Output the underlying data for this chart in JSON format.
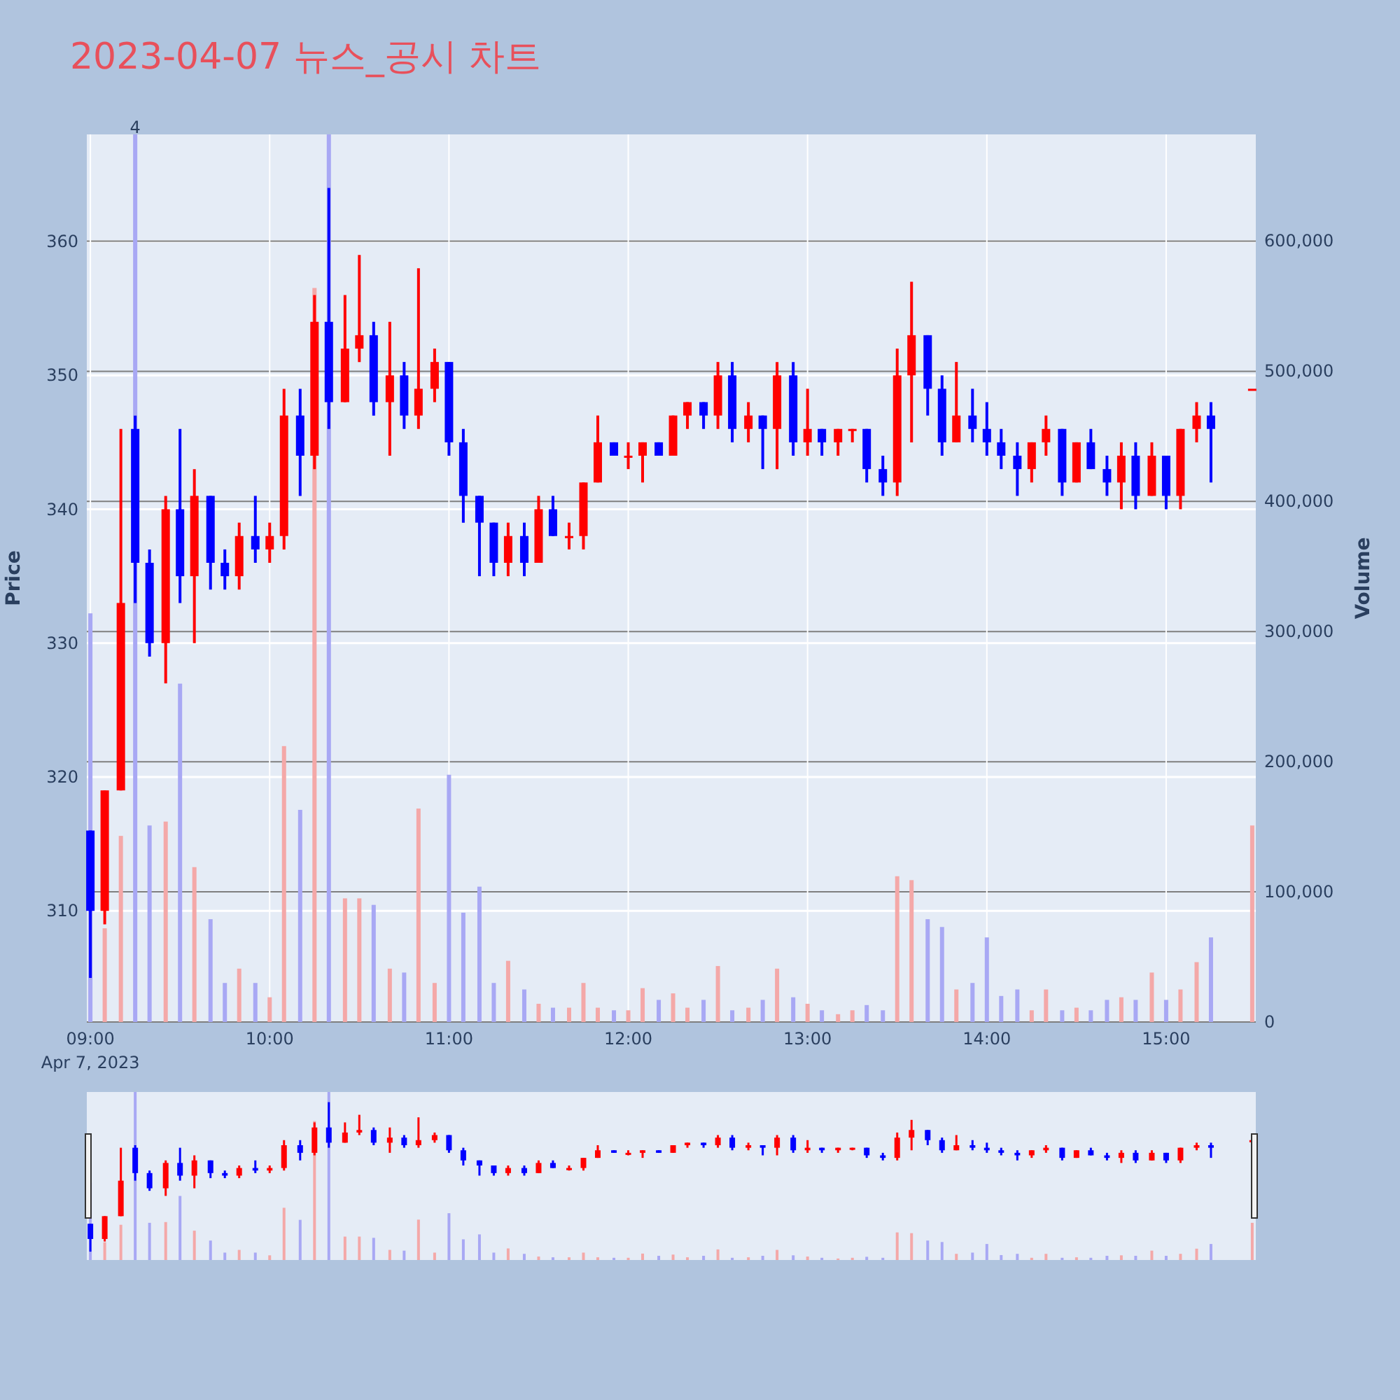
{
  "chart_data": {
    "type": "candlestick",
    "title": "2023-04-07 뉴스_공시 차트",
    "ylabel": "Price",
    "y2label": "Volume",
    "x": [
      9,
      9.08,
      9.17,
      9.25,
      9.33,
      9.42,
      9.5,
      9.58,
      9.67,
      9.75,
      9.83,
      9.92,
      10,
      10.08,
      10.17,
      10.25,
      10.33,
      10.42,
      10.5,
      10.58,
      10.67,
      10.75,
      10.83,
      10.92,
      11,
      11.08,
      11.17,
      11.25,
      11.33,
      11.42,
      11.5,
      11.58,
      11.67,
      11.75,
      11.83,
      11.92,
      12,
      12.08,
      12.17,
      12.25,
      12.33,
      12.42,
      12.5,
      12.58,
      12.67,
      12.75,
      12.83,
      12.92,
      13,
      13.08,
      13.17,
      13.25,
      13.33,
      13.42,
      13.5,
      13.58,
      13.67,
      13.75,
      13.83,
      13.92,
      14,
      14.08,
      14.17,
      14.25,
      14.33,
      14.42,
      14.5,
      14.58,
      14.67,
      14.75,
      14.83,
      14.92,
      15,
      15.08,
      15.17,
      15.25,
      15.48
    ],
    "xlim": [
      8.98,
      15.5
    ],
    "xticks": [
      {
        "value": 9,
        "label": "09:00"
      },
      {
        "value": 10,
        "label": "10:00"
      },
      {
        "value": 11,
        "label": "11:00"
      },
      {
        "value": 12,
        "label": "12:00"
      },
      {
        "value": 13,
        "label": "13:00"
      },
      {
        "value": 14,
        "label": "14:00"
      },
      {
        "value": 15,
        "label": "15:00"
      }
    ],
    "ylim": [
      301.7,
      368
    ],
    "yticks": [
      310,
      320,
      330,
      340,
      350,
      360
    ],
    "y2lim": [
      0,
      682000
    ],
    "y2ticks": [
      0,
      {
        "value": 100000,
        "label": "100,000"
      },
      {
        "value": 200000,
        "label": "200,000"
      },
      {
        "value": 300000,
        "label": "300,000"
      },
      {
        "value": 400000,
        "label": "400,000"
      },
      {
        "value": 500000,
        "label": "500,000"
      },
      {
        "value": 600000,
        "label": "600,000"
      }
    ],
    "grid": true,
    "annotations": [
      "Apr 7, 2023",
      "4"
    ],
    "series": [
      {
        "type": "candlestick",
        "ohlc": [
          [
            316,
            316,
            305,
            310
          ],
          [
            310,
            319,
            309,
            319
          ],
          [
            319,
            346,
            319,
            333
          ],
          [
            346,
            347,
            333,
            336
          ],
          [
            336,
            337,
            329,
            330
          ],
          [
            330,
            341,
            327,
            340
          ],
          [
            340,
            346,
            333,
            335
          ],
          [
            335,
            343,
            330,
            341
          ],
          [
            341,
            341,
            334,
            336
          ],
          [
            336,
            337,
            334,
            335
          ],
          [
            335,
            339,
            334,
            338
          ],
          [
            338,
            341,
            336,
            337
          ],
          [
            337,
            339,
            336,
            338
          ],
          [
            338,
            349,
            337,
            347
          ],
          [
            347,
            349,
            341,
            344
          ],
          [
            344,
            356,
            343,
            354
          ],
          [
            354,
            364,
            346,
            348
          ],
          [
            348,
            356,
            348,
            352
          ],
          [
            352,
            359,
            351,
            353
          ],
          [
            353,
            354,
            347,
            348
          ],
          [
            348,
            354,
            344,
            350
          ],
          [
            350,
            351,
            346,
            347
          ],
          [
            347,
            358,
            346,
            349
          ],
          [
            349,
            352,
            348,
            351
          ],
          [
            351,
            351,
            344,
            345
          ],
          [
            345,
            346,
            339,
            341
          ],
          [
            341,
            341,
            335,
            339
          ],
          [
            339,
            339,
            335,
            336
          ],
          [
            336,
            339,
            335,
            338
          ],
          [
            338,
            339,
            335,
            336
          ],
          [
            336,
            341,
            336,
            340
          ],
          [
            340,
            341,
            338,
            338
          ],
          [
            338,
            339,
            337,
            338
          ],
          [
            338,
            342,
            337,
            342
          ],
          [
            342,
            347,
            342,
            345
          ],
          [
            345,
            345,
            344,
            344
          ],
          [
            344,
            345,
            343,
            344
          ],
          [
            344,
            345,
            342,
            345
          ],
          [
            345,
            345,
            344,
            344
          ],
          [
            344,
            347,
            344,
            347
          ],
          [
            347,
            348,
            346,
            348
          ],
          [
            348,
            348,
            346,
            347
          ],
          [
            347,
            351,
            346,
            350
          ],
          [
            350,
            351,
            345,
            346
          ],
          [
            346,
            348,
            345,
            347
          ],
          [
            347,
            347,
            343,
            346
          ],
          [
            346,
            351,
            343,
            350
          ],
          [
            350,
            351,
            344,
            345
          ],
          [
            345,
            349,
            344,
            346
          ],
          [
            346,
            346,
            344,
            345
          ],
          [
            345,
            346,
            344,
            346
          ],
          [
            346,
            346,
            345,
            346
          ],
          [
            346,
            346,
            342,
            343
          ],
          [
            343,
            344,
            341,
            342
          ],
          [
            342,
            352,
            341,
            350
          ],
          [
            350,
            357,
            345,
            353
          ],
          [
            353,
            353,
            347,
            349
          ],
          [
            349,
            350,
            344,
            345
          ],
          [
            345,
            351,
            345,
            347
          ],
          [
            347,
            349,
            345,
            346
          ],
          [
            346,
            348,
            344,
            345
          ],
          [
            345,
            346,
            343,
            344
          ],
          [
            344,
            345,
            341,
            343
          ],
          [
            343,
            345,
            342,
            345
          ],
          [
            345,
            347,
            344,
            346
          ],
          [
            346,
            346,
            341,
            342
          ],
          [
            342,
            345,
            342,
            345
          ],
          [
            345,
            346,
            343,
            343
          ],
          [
            343,
            344,
            341,
            342
          ],
          [
            342,
            345,
            340,
            344
          ],
          [
            344,
            345,
            340,
            341
          ],
          [
            341,
            345,
            341,
            344
          ],
          [
            344,
            344,
            340,
            341
          ],
          [
            341,
            346,
            340,
            346
          ],
          [
            346,
            348,
            345,
            347
          ],
          [
            347,
            348,
            342,
            346
          ],
          [
            349,
            349,
            349,
            349
          ]
        ],
        "colors": [
          "#0000ff",
          "#ff0000",
          "#ff0000",
          "#0000ff",
          "#0000ff",
          "#ff0000",
          "#0000ff",
          "#ff0000",
          "#0000ff",
          "#0000ff",
          "#ff0000",
          "#0000ff",
          "#ff0000",
          "#ff0000",
          "#0000ff",
          "#ff0000",
          "#0000ff",
          "#ff0000",
          "#ff0000",
          "#0000ff",
          "#ff0000",
          "#0000ff",
          "#ff0000",
          "#ff0000",
          "#0000ff",
          "#0000ff",
          "#0000ff",
          "#0000ff",
          "#ff0000",
          "#0000ff",
          "#ff0000",
          "#0000ff",
          "#ff0000",
          "#ff0000",
          "#ff0000",
          "#0000ff",
          "#ff0000",
          "#ff0000",
          "#0000ff",
          "#ff0000",
          "#ff0000",
          "#0000ff",
          "#ff0000",
          "#0000ff",
          "#ff0000",
          "#0000ff",
          "#ff0000",
          "#0000ff",
          "#ff0000",
          "#0000ff",
          "#ff0000",
          "#ff0000",
          "#0000ff",
          "#0000ff",
          "#ff0000",
          "#ff0000",
          "#0000ff",
          "#0000ff",
          "#ff0000",
          "#0000ff",
          "#0000ff",
          "#0000ff",
          "#0000ff",
          "#ff0000",
          "#ff0000",
          "#0000ff",
          "#ff0000",
          "#0000ff",
          "#0000ff",
          "#ff0000",
          "#0000ff",
          "#ff0000",
          "#0000ff",
          "#ff0000",
          "#ff0000",
          "#0000ff",
          "#ff0000"
        ]
      },
      {
        "type": "bar",
        "axis": "y2",
        "values": [
          314000,
          72000,
          143000,
          682000,
          151000,
          154000,
          260000,
          119000,
          79000,
          30000,
          41000,
          30000,
          19000,
          212000,
          163000,
          564000,
          682000,
          95000,
          95000,
          90000,
          41000,
          38000,
          164000,
          30000,
          190000,
          84000,
          104000,
          30000,
          47000,
          25000,
          14000,
          11000,
          11000,
          30000,
          11000,
          9000,
          9000,
          26000,
          17000,
          22000,
          11000,
          17000,
          43000,
          9000,
          11000,
          17000,
          41000,
          19000,
          14000,
          9000,
          6000,
          9000,
          13000,
          9000,
          112000,
          109000,
          79000,
          73000,
          25000,
          30000,
          65000,
          20000,
          25000,
          9000,
          25000,
          9000,
          11000,
          9000,
          17000,
          19000,
          17000,
          38000,
          17000,
          25000,
          46000,
          65000,
          151000
        ],
        "colors": [
          "#a8a8f4",
          "#f4a8a8",
          "#f4a8a8",
          "#a8a8f4",
          "#a8a8f4",
          "#f4a8a8",
          "#a8a8f4",
          "#f4a8a8",
          "#a8a8f4",
          "#a8a8f4",
          "#f4a8a8",
          "#a8a8f4",
          "#f4a8a8",
          "#f4a8a8",
          "#a8a8f4",
          "#f4a8a8",
          "#a8a8f4",
          "#f4a8a8",
          "#f4a8a8",
          "#a8a8f4",
          "#f4a8a8",
          "#a8a8f4",
          "#f4a8a8",
          "#f4a8a8",
          "#a8a8f4",
          "#a8a8f4",
          "#a8a8f4",
          "#a8a8f4",
          "#f4a8a8",
          "#a8a8f4",
          "#f4a8a8",
          "#a8a8f4",
          "#f4a8a8",
          "#f4a8a8",
          "#f4a8a8",
          "#a8a8f4",
          "#f4a8a8",
          "#f4a8a8",
          "#a8a8f4",
          "#f4a8a8",
          "#f4a8a8",
          "#a8a8f4",
          "#f4a8a8",
          "#a8a8f4",
          "#f4a8a8",
          "#a8a8f4",
          "#f4a8a8",
          "#a8a8f4",
          "#f4a8a8",
          "#a8a8f4",
          "#f4a8a8",
          "#f4a8a8",
          "#a8a8f4",
          "#a8a8f4",
          "#f4a8a8",
          "#f4a8a8",
          "#a8a8f4",
          "#a8a8f4",
          "#f4a8a8",
          "#a8a8f4",
          "#a8a8f4",
          "#a8a8f4",
          "#a8a8f4",
          "#f4a8a8",
          "#f4a8a8",
          "#a8a8f4",
          "#f4a8a8",
          "#a8a8f4",
          "#a8a8f4",
          "#f4a8a8",
          "#a8a8f4",
          "#f4a8a8",
          "#a8a8f4",
          "#f4a8a8",
          "#f4a8a8",
          "#a8a8f4",
          "#f4a8a8"
        ]
      }
    ]
  }
}
